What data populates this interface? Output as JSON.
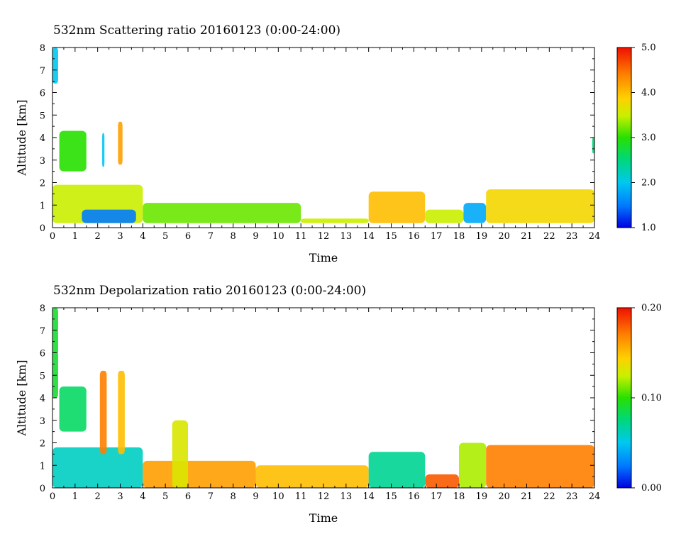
{
  "chart_data": [
    {
      "type": "heatmap",
      "title": "532nm Scattering ratio  20160123 (0:00-24:00)",
      "xlabel": "Time",
      "ylabel": "Altitude [km]",
      "xlim": [
        0,
        24
      ],
      "ylim": [
        0,
        8
      ],
      "x_ticks": [
        "0",
        "1",
        "2",
        "3",
        "4",
        "5",
        "6",
        "7",
        "8",
        "9",
        "10",
        "11",
        "12",
        "13",
        "14",
        "15",
        "16",
        "17",
        "18",
        "19",
        "20",
        "21",
        "22",
        "23",
        "24"
      ],
      "y_ticks": [
        "0",
        "1",
        "2",
        "3",
        "4",
        "5",
        "6",
        "7",
        "8"
      ],
      "colorbar": {
        "min": 1.0,
        "max": 5.0,
        "ticks": [
          "1.0",
          "2.0",
          "3.0",
          "4.0",
          "5.0"
        ]
      },
      "features": [
        {
          "x0": 0.0,
          "x1": 0.25,
          "y0": 6.4,
          "y1": 8.0,
          "value": 2.0
        },
        {
          "x0": 0.3,
          "x1": 1.5,
          "y0": 2.5,
          "y1": 4.3,
          "value": 3.0
        },
        {
          "x0": 2.2,
          "x1": 2.3,
          "y0": 2.7,
          "y1": 4.2,
          "value": 2.0
        },
        {
          "x0": 2.9,
          "x1": 3.1,
          "y0": 2.8,
          "y1": 4.7,
          "value": 4.2
        },
        {
          "x0": 0.0,
          "x1": 4.0,
          "y0": 0.2,
          "y1": 1.9,
          "value": 3.5
        },
        {
          "x0": 1.3,
          "x1": 3.7,
          "y0": 0.2,
          "y1": 0.8,
          "value": 1.5
        },
        {
          "x0": 4.0,
          "x1": 11.0,
          "y0": 0.2,
          "y1": 1.1,
          "value": 3.2
        },
        {
          "x0": 11.0,
          "x1": 14.0,
          "y0": 0.2,
          "y1": 0.4,
          "value": 3.5
        },
        {
          "x0": 14.0,
          "x1": 16.5,
          "y0": 0.2,
          "y1": 1.6,
          "value": 4.0
        },
        {
          "x0": 16.5,
          "x1": 18.2,
          "y0": 0.2,
          "y1": 0.8,
          "value": 3.5
        },
        {
          "x0": 18.2,
          "x1": 19.2,
          "y0": 0.2,
          "y1": 1.1,
          "value": 1.8
        },
        {
          "x0": 19.2,
          "x1": 24.0,
          "y0": 0.2,
          "y1": 1.7,
          "value": 3.8
        },
        {
          "x0": 23.9,
          "x1": 24.0,
          "y0": 3.3,
          "y1": 4.0,
          "value": 2.5
        }
      ]
    },
    {
      "type": "heatmap",
      "title": "532nm Depolarization ratio  20160123 (0:00-24:00)",
      "xlabel": "Time",
      "ylabel": "Altitude [km]",
      "xlim": [
        0,
        24
      ],
      "ylim": [
        0,
        8
      ],
      "x_ticks": [
        "0",
        "1",
        "2",
        "3",
        "4",
        "5",
        "6",
        "7",
        "8",
        "9",
        "10",
        "11",
        "12",
        "13",
        "14",
        "15",
        "16",
        "17",
        "18",
        "19",
        "20",
        "21",
        "22",
        "23",
        "24"
      ],
      "y_ticks": [
        "0",
        "1",
        "2",
        "3",
        "4",
        "5",
        "6",
        "7",
        "8"
      ],
      "colorbar": {
        "min": 0.0,
        "max": 0.2,
        "ticks": [
          "0.00",
          "0.10",
          "0.20"
        ]
      },
      "features": [
        {
          "x0": 0.0,
          "x1": 0.25,
          "y0": 4.0,
          "y1": 8.0,
          "value": 0.09
        },
        {
          "x0": 0.3,
          "x1": 1.5,
          "y0": 2.5,
          "y1": 4.5,
          "value": 0.08
        },
        {
          "x0": 0.0,
          "x1": 4.0,
          "y0": 0.0,
          "y1": 1.8,
          "value": 0.06
        },
        {
          "x0": 2.1,
          "x1": 2.4,
          "y0": 1.5,
          "y1": 5.2,
          "value": 0.17
        },
        {
          "x0": 2.9,
          "x1": 3.2,
          "y0": 1.5,
          "y1": 5.2,
          "value": 0.15
        },
        {
          "x0": 4.0,
          "x1": 9.0,
          "y0": 0.0,
          "y1": 1.2,
          "value": 0.16
        },
        {
          "x0": 5.3,
          "x1": 6.0,
          "y0": 0.0,
          "y1": 3.0,
          "value": 0.13
        },
        {
          "x0": 9.0,
          "x1": 14.0,
          "y0": 0.0,
          "y1": 1.0,
          "value": 0.15
        },
        {
          "x0": 14.0,
          "x1": 16.5,
          "y0": 0.0,
          "y1": 1.6,
          "value": 0.07
        },
        {
          "x0": 16.5,
          "x1": 18.0,
          "y0": 0.0,
          "y1": 0.6,
          "value": 0.18
        },
        {
          "x0": 18.0,
          "x1": 19.2,
          "y0": 0.0,
          "y1": 2.0,
          "value": 0.12
        },
        {
          "x0": 19.2,
          "x1": 24.0,
          "y0": 0.0,
          "y1": 1.9,
          "value": 0.17
        }
      ]
    }
  ]
}
